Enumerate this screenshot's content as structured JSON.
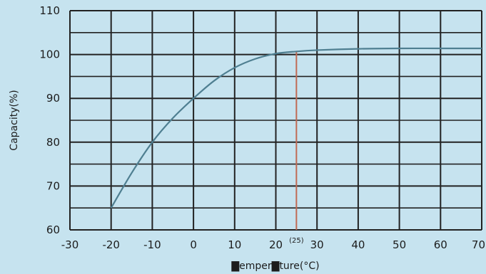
{
  "chart_data": {
    "type": "line",
    "xlabel": "▇emper▇ture(°C)",
    "ylabel": "Capacity(%)",
    "xlim": [
      -30,
      70
    ],
    "ylim": [
      60,
      110
    ],
    "x_ticks": [
      -30,
      -20,
      -10,
      0,
      10,
      20,
      30,
      40,
      50,
      60,
      70
    ],
    "y_ticks": [
      60,
      70,
      80,
      90,
      100,
      110
    ],
    "x_tick_labels": [
      "-30",
      "-20",
      "-10",
      "0",
      "10",
      "20",
      "30",
      "40",
      "50",
      "60",
      "70"
    ],
    "y_tick_labels": [
      "60",
      "70",
      "80",
      "90",
      "100",
      "110"
    ],
    "grid": true,
    "series": [
      {
        "color": "#4f7f91",
        "x": [
          -20,
          -15,
          -10,
          -5,
          0,
          5,
          10,
          15,
          20,
          25,
          30,
          40,
          50,
          60,
          70
        ],
        "y": [
          65,
          73,
          80,
          85.5,
          90,
          94,
          97,
          99,
          100.2,
          100.7,
          101,
          101.3,
          101.4,
          101.4,
          101.4
        ]
      }
    ],
    "annotation": {
      "x": 25,
      "label": "(25)",
      "color": "#c06b55"
    }
  }
}
